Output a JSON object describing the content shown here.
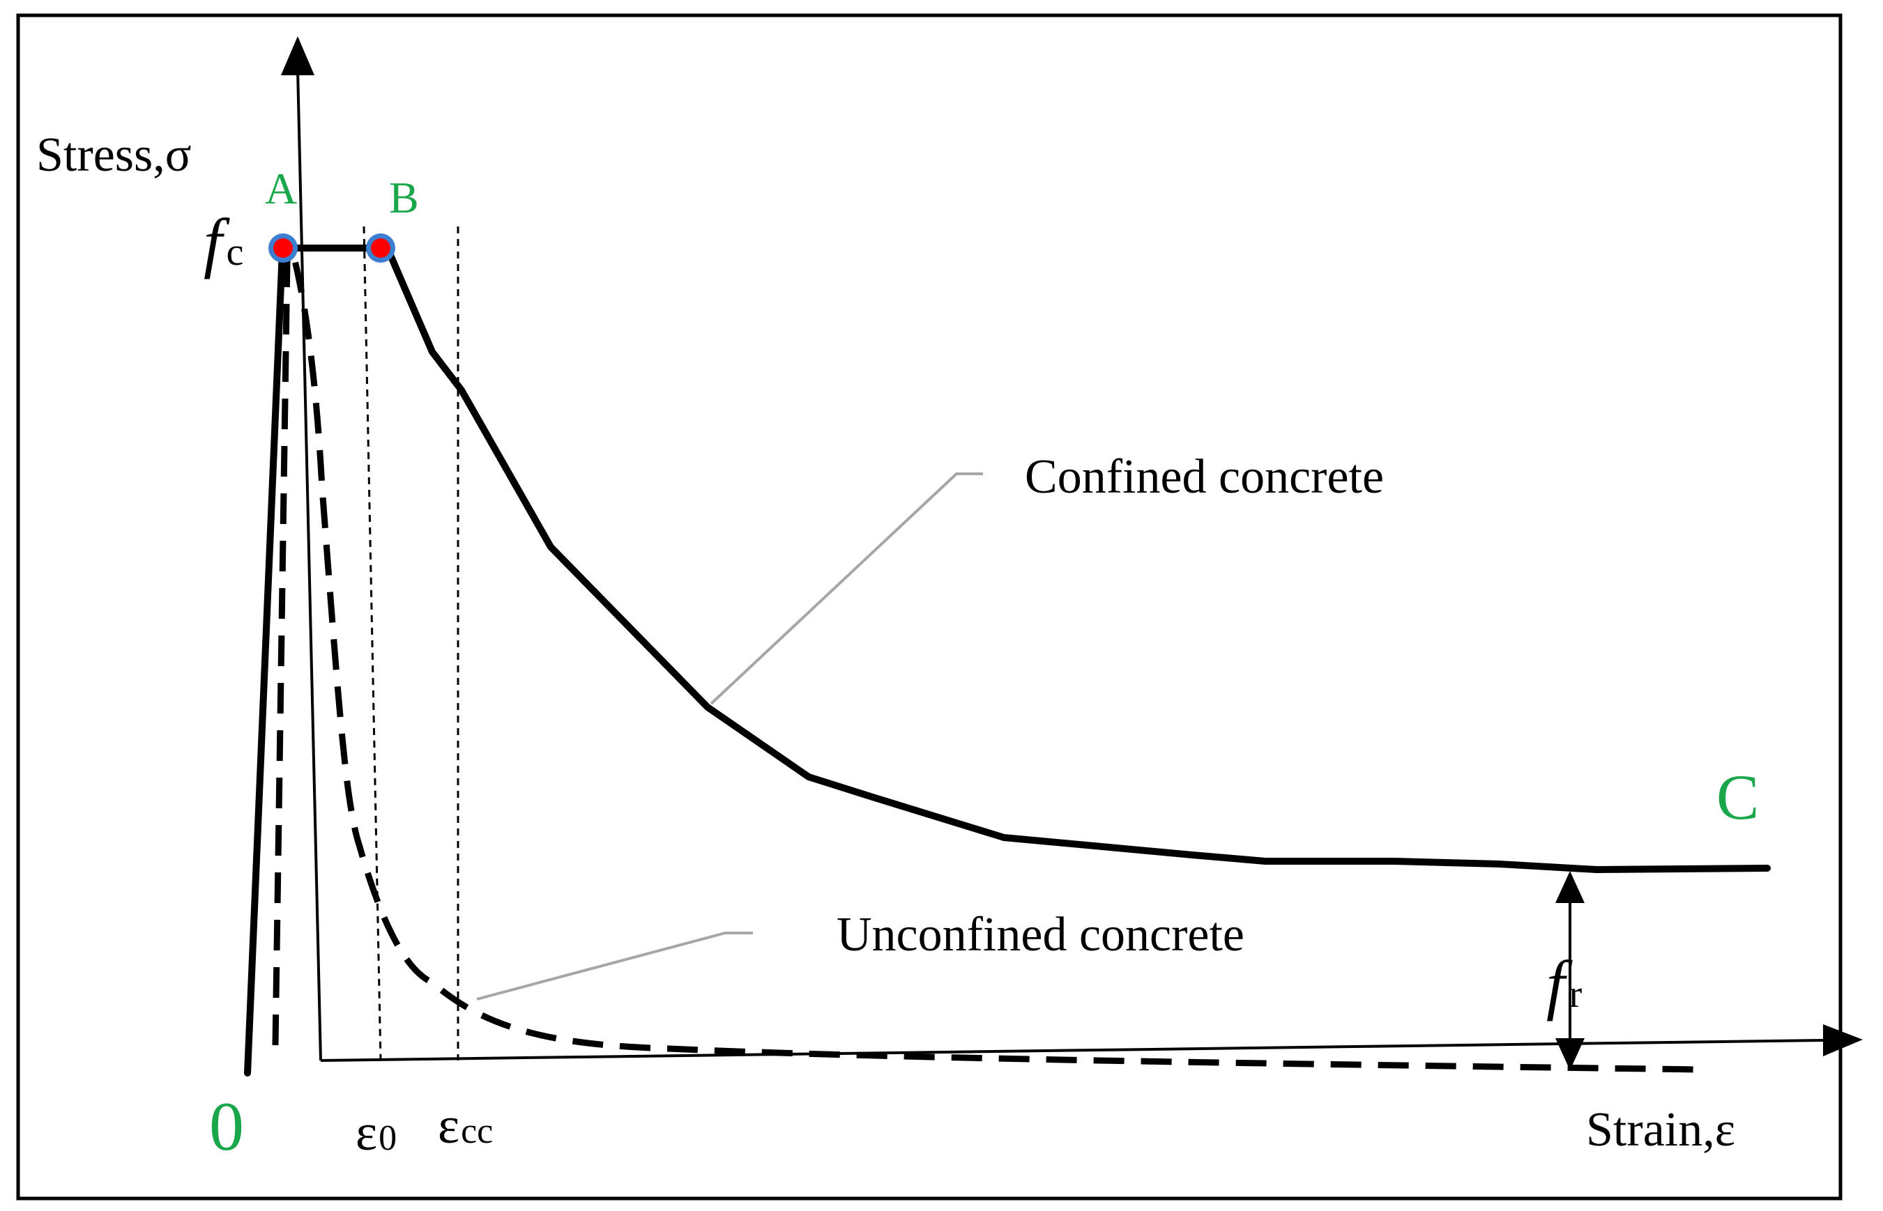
{
  "diagram": {
    "y_axis_label": "Stress,σ",
    "x_axis_label": "Strain,ε",
    "origin_label": "0",
    "fc_label": {
      "main": "f",
      "sub": "c"
    },
    "fr_label": {
      "main": "f",
      "sub": "r"
    },
    "point_labels": {
      "A": "A",
      "B": "B",
      "C": "C"
    },
    "strain_labels": {
      "e0": {
        "main": "ε",
        "sub": "0"
      },
      "ecc": {
        "main": "ε",
        "sub": "cc"
      }
    },
    "callouts": {
      "confined": "Confined concrete",
      "unconfined": "Unconfined concrete"
    },
    "colors": {
      "curve": "#000000",
      "label_green": "#1aa64a",
      "leader": "#a6a6a6",
      "point_fill": "#ff0000",
      "point_ring": "#3c7fd1",
      "frame": "#000000"
    }
  }
}
